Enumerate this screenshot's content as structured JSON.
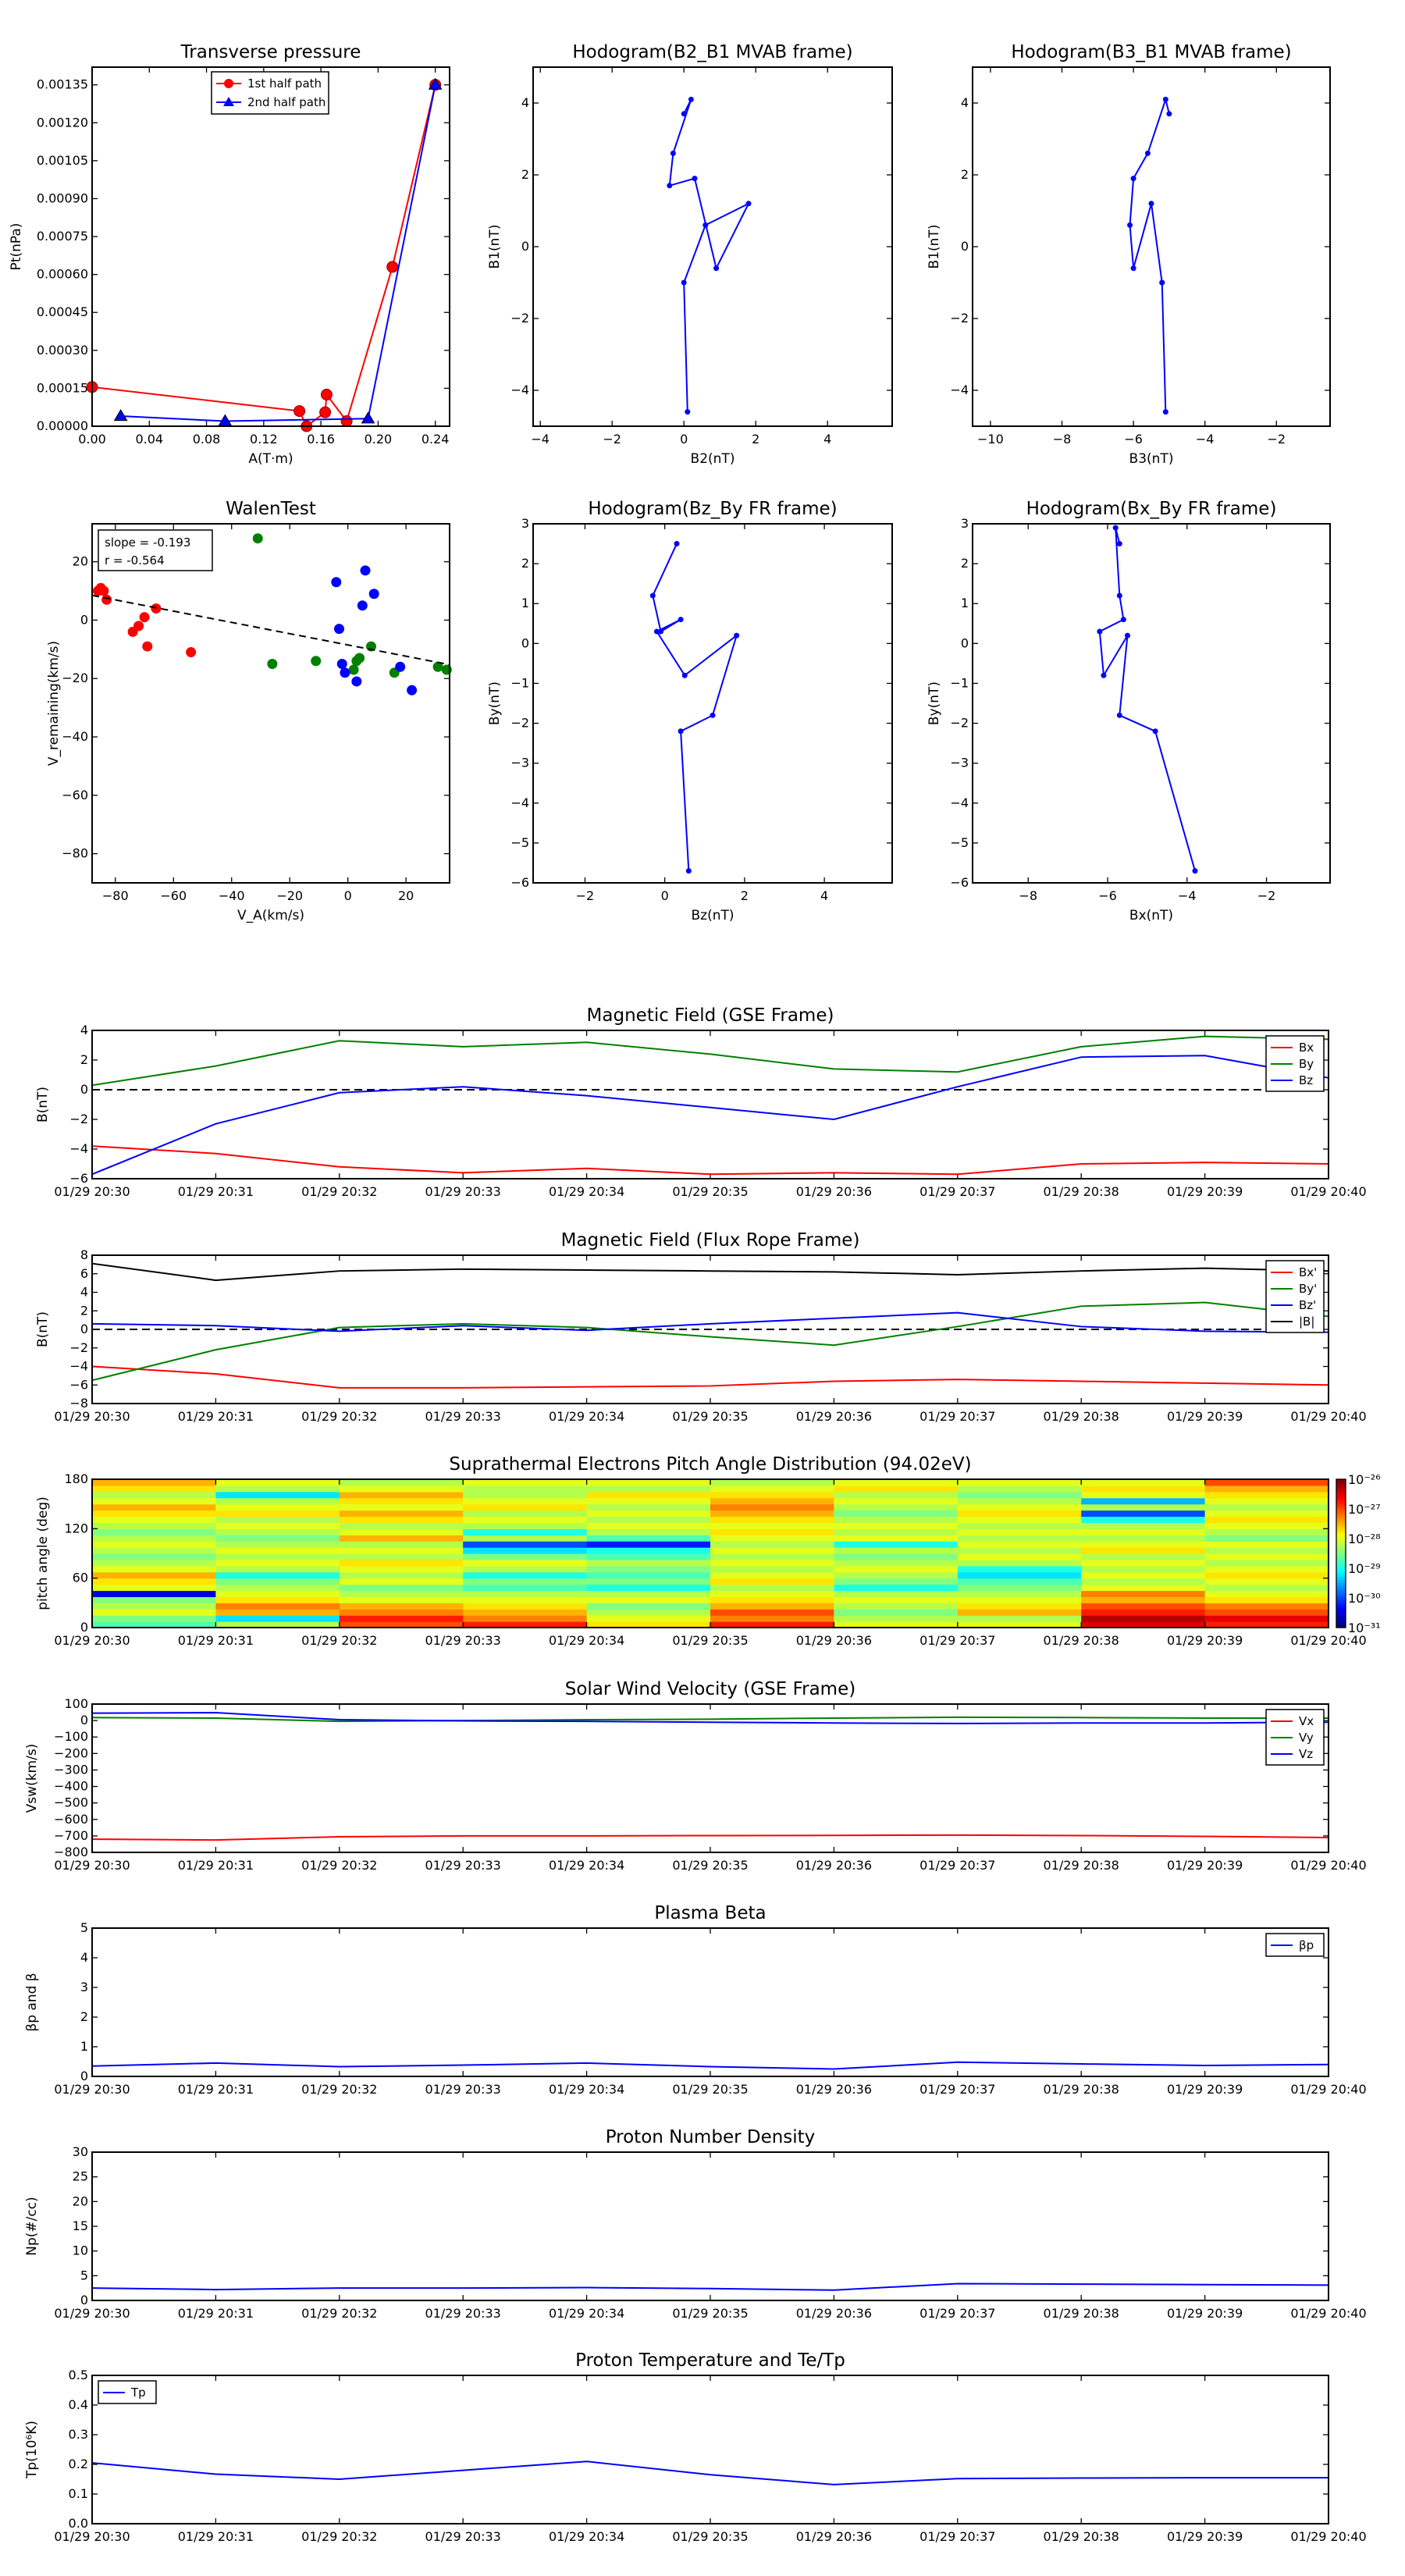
{
  "time_ticks": [
    "01/29 20:30",
    "01/29 20:31",
    "01/29 20:32",
    "01/29 20:33",
    "01/29 20:34",
    "01/29 20:35",
    "01/29 20:36",
    "01/29 20:37",
    "01/29 20:38",
    "01/29 20:39",
    "01/29 20:40"
  ],
  "colors": {
    "red": "#ff0000",
    "green": "#008000",
    "blue": "#0000ff",
    "black": "#000000",
    "darkred": "#8b0000"
  },
  "chart_data": [
    {
      "id": "transverse-pressure",
      "type": "line",
      "title": "Transverse pressure",
      "xlabel": "A(T·m)",
      "ylabel": "Pt(nPa)",
      "xlim": [
        0,
        0.25
      ],
      "ylim": [
        0,
        0.00142
      ],
      "xticks": [
        "0.00",
        "0.04",
        "0.08",
        "0.12",
        "0.16",
        "0.20",
        "0.24"
      ],
      "yticks": [
        "0.00000",
        "0.00015",
        "0.00030",
        "0.00045",
        "0.00060",
        "0.00075",
        "0.00090",
        "0.00105",
        "0.00120",
        "0.00135"
      ],
      "legend_position": "top-center",
      "series": [
        {
          "name": "1st half path",
          "color": "#ff0000",
          "marker": "circle",
          "x": [
            0.0,
            0.145,
            0.15,
            0.163,
            0.164,
            0.178,
            0.21,
            0.24
          ],
          "y": [
            0.000155,
            6e-05,
            0.0,
            5.5e-05,
            0.000125,
            2e-05,
            0.00063,
            0.00135
          ]
        },
        {
          "name": "2nd half path",
          "color": "#0000ff",
          "marker": "triangle",
          "x": [
            0.02,
            0.093,
            0.193,
            0.24
          ],
          "y": [
            4e-05,
            2e-05,
            3e-05,
            0.00135
          ]
        }
      ]
    },
    {
      "id": "hodogram-b2-b1",
      "type": "line",
      "title": "Hodogram(B2_B1 MVAB frame)",
      "xlabel": "B2(nT)",
      "ylabel": "B1(nT)",
      "xlim": [
        -4.2,
        5.8
      ],
      "ylim": [
        -5,
        5
      ],
      "xticks": [
        "−4",
        "−2",
        "0",
        "2",
        "4"
      ],
      "yticks": [
        "−4",
        "−2",
        "0",
        "2",
        "4"
      ],
      "series": [
        {
          "name": "",
          "color": "#0000ff",
          "x": [
            0.1,
            0.0,
            0.6,
            1.8,
            0.9,
            0.3,
            -0.4,
            -0.3,
            0.2,
            0.0
          ],
          "y": [
            -4.6,
            -1.0,
            0.6,
            1.2,
            -0.6,
            1.9,
            1.7,
            2.6,
            4.1,
            3.7
          ]
        }
      ]
    },
    {
      "id": "hodogram-b3-b1",
      "type": "line",
      "title": "Hodogram(B3_B1 MVAB frame)",
      "xlabel": "B3(nT)",
      "ylabel": "B1(nT)",
      "xlim": [
        -10.5,
        -0.5
      ],
      "ylim": [
        -5,
        5
      ],
      "xticks": [
        "−10",
        "−8",
        "−6",
        "−4",
        "−2"
      ],
      "yticks": [
        "−4",
        "−2",
        "0",
        "2",
        "4"
      ],
      "series": [
        {
          "name": "",
          "color": "#0000ff",
          "x": [
            -5.1,
            -5.2,
            -5.2,
            -5.5,
            -6.0,
            -6.1,
            -6.0,
            -5.6,
            -5.1,
            -5.0
          ],
          "y": [
            -4.6,
            -1.0,
            -1.0,
            1.2,
            -0.6,
            0.6,
            1.9,
            2.6,
            4.1,
            3.7
          ]
        }
      ]
    },
    {
      "id": "walen-test",
      "type": "scatter",
      "title": "WalenTest",
      "xlabel": "V_A(km/s)",
      "ylabel": "V_remaining(km/s)",
      "xlim": [
        -88,
        35
      ],
      "ylim": [
        -90,
        33
      ],
      "xticks": [
        "−80",
        "−60",
        "−40",
        "−20",
        "0",
        "20"
      ],
      "yticks": [
        "−80",
        "−60",
        "−40",
        "−20",
        "0",
        "20"
      ],
      "annotations": [
        "slope = -0.193",
        "r = -0.564"
      ],
      "fit_line": {
        "slope": -0.193,
        "intercept": -8.5,
        "color": "#000000",
        "style": "dashed"
      },
      "series": [
        {
          "name": "",
          "color": "#ff0000",
          "x": [
            -86,
            -85,
            -84,
            -83,
            -74,
            -72,
            -70,
            -69,
            -66,
            -54
          ],
          "y": [
            10,
            11,
            10,
            7,
            -4,
            -2,
            1,
            -9,
            4,
            -11
          ]
        },
        {
          "name": "",
          "color": "#008000",
          "x": [
            -31,
            -26,
            -11,
            2,
            3,
            4,
            8,
            16,
            31,
            34
          ],
          "y": [
            28,
            -15,
            -14,
            -17,
            -14,
            -13,
            -9,
            -18,
            -16,
            -17
          ]
        },
        {
          "name": "",
          "color": "#0000ff",
          "x": [
            -4,
            -3,
            -2,
            -1,
            3,
            5,
            6,
            9,
            18,
            22
          ],
          "y": [
            13,
            -3,
            -15,
            -18,
            -21,
            5,
            17,
            9,
            -16,
            -24
          ]
        }
      ]
    },
    {
      "id": "hodogram-bz-by",
      "type": "line",
      "title": "Hodogram(Bz_By FR frame)",
      "xlabel": "Bz(nT)",
      "ylabel": "By(nT)",
      "xlim": [
        -3.3,
        5.7
      ],
      "ylim": [
        -6,
        3
      ],
      "xticks": [
        "−2",
        "0",
        "2",
        "4"
      ],
      "yticks": [
        "−6",
        "−5",
        "−4",
        "−3",
        "−2",
        "−1",
        "0",
        "1",
        "2",
        "3"
      ],
      "series": [
        {
          "name": "",
          "color": "#0000ff",
          "x": [
            0.6,
            0.4,
            1.2,
            1.8,
            0.5,
            -0.2,
            0.4,
            -0.1,
            -0.3,
            0.3
          ],
          "y": [
            -5.7,
            -2.2,
            -1.8,
            0.2,
            -0.8,
            0.3,
            0.6,
            0.3,
            1.2,
            2.5
          ]
        }
      ]
    },
    {
      "id": "hodogram-bx-by",
      "type": "line",
      "title": "Hodogram(Bx_By FR frame)",
      "xlabel": "Bx(nT)",
      "ylabel": "By(nT)",
      "xlim": [
        -9.4,
        -0.4
      ],
      "ylim": [
        -6,
        3
      ],
      "xticks": [
        "−8",
        "−6",
        "−4",
        "−2"
      ],
      "yticks": [
        "−6",
        "−5",
        "−4",
        "−3",
        "−2",
        "−1",
        "0",
        "1",
        "2",
        "3"
      ],
      "series": [
        {
          "name": "",
          "color": "#0000ff",
          "x": [
            -3.8,
            -4.8,
            -5.7,
            -5.5,
            -6.1,
            -6.2,
            -5.6,
            -5.7,
            -5.8,
            -5.7
          ],
          "y": [
            -5.7,
            -2.2,
            -1.8,
            0.2,
            -0.8,
            0.3,
            0.6,
            1.2,
            2.9,
            2.5
          ]
        }
      ]
    },
    {
      "id": "mag-gse",
      "type": "line",
      "title": "Magnetic Field (GSE Frame)",
      "xlabel": "",
      "ylabel": "B(nT)",
      "ylim": [
        -6,
        4
      ],
      "yticks": [
        "−6",
        "−4",
        "−2",
        "0",
        "2",
        "4"
      ],
      "legend_position": "top-right",
      "zero_line": true,
      "x_minutes": [
        0,
        1,
        2,
        3,
        4,
        5,
        6,
        7,
        8,
        9,
        10
      ],
      "series": [
        {
          "name": "Bx",
          "color": "#ff0000",
          "values": [
            -3.8,
            -4.3,
            -5.2,
            -5.6,
            -5.3,
            -5.7,
            -5.6,
            -5.7,
            -5.0,
            -4.9,
            -5.0
          ]
        },
        {
          "name": "By",
          "color": "#008000",
          "values": [
            0.3,
            1.6,
            3.3,
            2.9,
            3.2,
            2.4,
            1.4,
            1.2,
            2.9,
            3.6,
            3.4
          ]
        },
        {
          "name": "Bz",
          "color": "#0000ff",
          "values": [
            -5.7,
            -2.3,
            -0.2,
            0.2,
            -0.4,
            -1.2,
            -2.0,
            0.2,
            2.2,
            2.3,
            0.8
          ]
        }
      ]
    },
    {
      "id": "mag-fr",
      "type": "line",
      "title": "Magnetic Field (Flux Rope Frame)",
      "xlabel": "",
      "ylabel": "B(nT)",
      "ylim": [
        -8,
        8
      ],
      "yticks": [
        "−8",
        "−6",
        "−4",
        "−2",
        "0",
        "2",
        "4",
        "6",
        "8"
      ],
      "legend_position": "top-right",
      "zero_line": true,
      "x_minutes": [
        0,
        1,
        2,
        3,
        4,
        5,
        6,
        7,
        8,
        9,
        10
      ],
      "series": [
        {
          "name": "Bx'",
          "color": "#ff0000",
          "values": [
            -4.0,
            -4.8,
            -6.3,
            -6.3,
            -6.2,
            -6.1,
            -5.6,
            -5.4,
            -5.6,
            -5.8,
            -6.0
          ]
        },
        {
          "name": "By'",
          "color": "#008000",
          "values": [
            -5.5,
            -2.2,
            0.2,
            0.6,
            0.2,
            -0.8,
            -1.7,
            0.3,
            2.5,
            2.9,
            1.4
          ]
        },
        {
          "name": "Bz'",
          "color": "#0000ff",
          "values": [
            0.6,
            0.4,
            -0.2,
            0.4,
            -0.1,
            0.6,
            1.2,
            1.8,
            0.3,
            -0.2,
            -0.3
          ]
        },
        {
          "name": "|B|",
          "color": "#000000",
          "values": [
            7.1,
            5.3,
            6.3,
            6.5,
            6.4,
            6.3,
            6.2,
            5.9,
            6.3,
            6.6,
            6.3
          ]
        }
      ]
    },
    {
      "id": "pad",
      "type": "heatmap",
      "title": "Suprathermal Electrons Pitch Angle Distribution (94.02eV)",
      "xlabel": "",
      "ylabel": "pitch angle (deg)",
      "ylim": [
        0,
        180
      ],
      "yticks": [
        "0",
        "60",
        "120",
        "180"
      ],
      "colorbar_ticks": [
        "10⁻²⁶",
        "10⁻²⁷",
        "10⁻²⁸",
        "10⁻²⁹",
        "10⁻³⁰",
        "10⁻³¹"
      ],
      "colorbar_ticks_display": [
        "10^-26",
        "10^-27",
        "10^-28",
        "10^-29",
        "10^-30",
        "10^-31"
      ],
      "columns": 10,
      "bins": 24,
      "levels": [
        [
          0.45,
          0.5,
          0.6,
          0.55,
          0.5,
          0.1,
          0.6,
          0.65,
          0.7,
          0.6,
          0.55,
          0.5,
          0.55,
          0.6,
          0.55,
          0.5,
          0.55,
          0.6,
          0.65,
          0.7,
          0.6,
          0.55,
          0.65,
          0.7
        ],
        [
          0.55,
          0.35,
          0.7,
          0.75,
          0.65,
          0.6,
          0.55,
          0.5,
          0.4,
          0.55,
          0.6,
          0.55,
          0.6,
          0.55,
          0.5,
          0.55,
          0.6,
          0.55,
          0.65,
          0.6,
          0.55,
          0.35,
          0.55,
          0.6
        ],
        [
          0.8,
          0.85,
          0.75,
          0.7,
          0.6,
          0.55,
          0.5,
          0.6,
          0.55,
          0.6,
          0.65,
          0.55,
          0.6,
          0.55,
          0.7,
          0.6,
          0.55,
          0.65,
          0.7,
          0.6,
          0.65,
          0.7,
          0.6,
          0.55
        ],
        [
          0.85,
          0.75,
          0.7,
          0.65,
          0.6,
          0.55,
          0.45,
          0.5,
          0.4,
          0.55,
          0.6,
          0.5,
          0.35,
          0.2,
          0.55,
          0.4,
          0.55,
          0.6,
          0.55,
          0.65,
          0.6,
          0.55,
          0.55,
          0.6
        ],
        [
          0.65,
          0.6,
          0.55,
          0.5,
          0.6,
          0.55,
          0.4,
          0.5,
          0.45,
          0.5,
          0.55,
          0.45,
          0.4,
          0.15,
          0.45,
          0.55,
          0.6,
          0.55,
          0.6,
          0.55,
          0.6,
          0.65,
          0.55,
          0.6
        ],
        [
          0.85,
          0.75,
          0.8,
          0.7,
          0.65,
          0.6,
          0.55,
          0.65,
          0.6,
          0.55,
          0.6,
          0.55,
          0.6,
          0.55,
          0.6,
          0.65,
          0.6,
          0.65,
          0.7,
          0.75,
          0.7,
          0.65,
          0.6,
          0.55
        ],
        [
          0.6,
          0.55,
          0.5,
          0.55,
          0.6,
          0.55,
          0.4,
          0.5,
          0.55,
          0.6,
          0.55,
          0.5,
          0.55,
          0.4,
          0.6,
          0.55,
          0.6,
          0.55,
          0.5,
          0.55,
          0.6,
          0.55,
          0.65,
          0.6
        ],
        [
          0.6,
          0.55,
          0.7,
          0.65,
          0.6,
          0.55,
          0.5,
          0.45,
          0.35,
          0.4,
          0.55,
          0.6,
          0.55,
          0.6,
          0.55,
          0.6,
          0.55,
          0.6,
          0.65,
          0.6,
          0.55,
          0.5,
          0.55,
          0.6
        ],
        [
          0.9,
          0.95,
          0.85,
          0.8,
          0.7,
          0.75,
          0.6,
          0.55,
          0.6,
          0.55,
          0.6,
          0.55,
          0.65,
          0.6,
          0.55,
          0.6,
          0.55,
          0.4,
          0.2,
          0.55,
          0.3,
          0.6,
          0.65,
          0.6
        ],
        [
          0.85,
          0.9,
          0.8,
          0.75,
          0.65,
          0.6,
          0.55,
          0.6,
          0.65,
          0.6,
          0.55,
          0.6,
          0.55,
          0.6,
          0.5,
          0.55,
          0.6,
          0.65,
          0.6,
          0.55,
          0.6,
          0.65,
          0.7,
          0.8
        ]
      ]
    },
    {
      "id": "sw-velocity",
      "type": "line",
      "title": "Solar Wind Velocity (GSE Frame)",
      "xlabel": "",
      "ylabel": "Vsw(km/s)",
      "ylim": [
        -800,
        100
      ],
      "yticks": [
        "−800",
        "−700",
        "−600",
        "−500",
        "−400",
        "−300",
        "−200",
        "−100",
        "0",
        "100"
      ],
      "legend_position": "top-right",
      "x_minutes": [
        0,
        1,
        2,
        3,
        4,
        5,
        6,
        7,
        8,
        9,
        10
      ],
      "series": [
        {
          "name": "Vx",
          "color": "#ff0000",
          "values": [
            -720,
            -725,
            -705,
            -700,
            -700,
            -698,
            -697,
            -695,
            -698,
            -703,
            -710
          ]
        },
        {
          "name": "Vy",
          "color": "#008000",
          "values": [
            18,
            15,
            -5,
            0,
            5,
            8,
            15,
            20,
            18,
            15,
            15
          ]
        },
        {
          "name": "Vz",
          "color": "#0000ff",
          "values": [
            45,
            48,
            5,
            -2,
            -5,
            -10,
            -15,
            -18,
            -15,
            -15,
            -10
          ]
        }
      ]
    },
    {
      "id": "plasma-beta",
      "type": "line",
      "title": "Plasma Beta",
      "xlabel": "",
      "ylabel": "βp and β",
      "ylim": [
        0,
        5
      ],
      "yticks": [
        "0",
        "1",
        "2",
        "3",
        "4",
        "5"
      ],
      "legend_position": "top-right",
      "x_minutes": [
        0,
        1,
        2,
        3,
        4,
        5,
        6,
        7,
        8,
        9,
        10
      ],
      "series": [
        {
          "name": "βp",
          "color": "#0000ff",
          "values": [
            0.35,
            0.45,
            0.33,
            0.38,
            0.45,
            0.33,
            0.25,
            0.48,
            0.42,
            0.37,
            0.4
          ]
        }
      ]
    },
    {
      "id": "proton-density",
      "type": "line",
      "title": "Proton Number Density",
      "xlabel": "",
      "ylabel": "Np(#/cc)",
      "ylim": [
        0,
        30
      ],
      "yticks": [
        "0",
        "5",
        "10",
        "15",
        "20",
        "25",
        "30"
      ],
      "x_minutes": [
        0,
        1,
        2,
        3,
        4,
        5,
        6,
        7,
        8,
        9,
        10
      ],
      "series": [
        {
          "name": "",
          "color": "#0000ff",
          "values": [
            2.5,
            2.2,
            2.5,
            2.5,
            2.6,
            2.4,
            2.1,
            3.4,
            3.3,
            3.2,
            3.1
          ]
        }
      ]
    },
    {
      "id": "proton-temp",
      "type": "line",
      "title": "Proton Temperature and Te/Tp",
      "xlabel": "",
      "ylabel": "Tp(10⁶K)",
      "ylim": [
        0,
        0.5
      ],
      "yticks": [
        "0.0",
        "0.1",
        "0.2",
        "0.3",
        "0.4",
        "0.5"
      ],
      "legend_position": "top-left",
      "x_minutes": [
        0,
        1,
        2,
        3,
        4,
        5,
        6,
        7,
        8,
        9,
        10
      ],
      "series": [
        {
          "name": "Tp",
          "color": "#0000ff",
          "values": [
            0.205,
            0.167,
            0.15,
            0.18,
            0.21,
            0.165,
            0.132,
            0.152,
            0.154,
            0.155,
            0.155
          ]
        }
      ]
    }
  ]
}
